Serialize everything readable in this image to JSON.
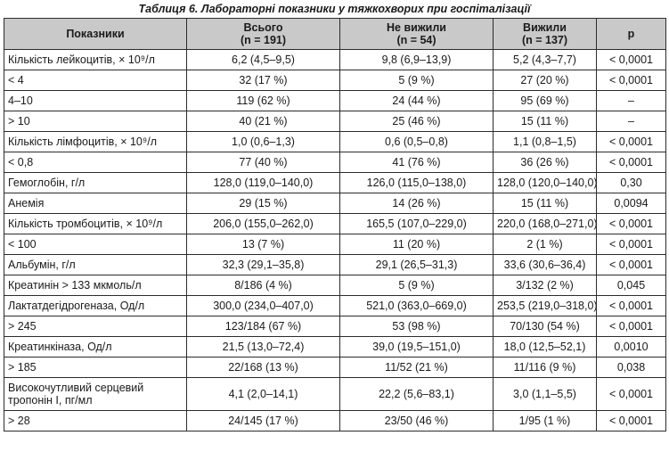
{
  "caption": "Таблиця 6. Лабораторні показники у тяжкохворих при госпіталізації",
  "headers": {
    "indicator": "Показники",
    "total_line1": "Всього",
    "total_line2": "(n = 191)",
    "died_line1": "Не вижили",
    "died_line2": "(n = 54)",
    "survived_line1": "Вижили",
    "survived_line2": "(n = 137)",
    "p": "p"
  },
  "rows": [
    {
      "label": "Кількість лейкоцитів, × 10⁹/л",
      "total": "6,2 (4,5–9,5)",
      "died": "9,8 (6,9–13,9)",
      "survived": "5,2 (4,3–7,7)",
      "p": "< 0,0001"
    },
    {
      "label": "< 4",
      "total": "32 (17 %)",
      "died": "5 (9 %)",
      "survived": "27 (20 %)",
      "p": "< 0,0001"
    },
    {
      "label": "4–10",
      "total": "119 (62 %)",
      "died": "24 (44 %)",
      "survived": "95 (69 %)",
      "p": "–"
    },
    {
      "label": "> 10",
      "total": "40 (21 %)",
      "died": "25 (46 %)",
      "survived": "15 (11 %)",
      "p": "–"
    },
    {
      "label": "Кількість лімфоцитів, × 10⁹/л",
      "total": "1,0 (0,6–1,3)",
      "died": "0,6 (0,5–0,8)",
      "survived": "1,1 (0,8–1,5)",
      "p": "< 0,0001"
    },
    {
      "label": "< 0,8",
      "total": "77 (40 %)",
      "died": "41 (76 %)",
      "survived": "36 (26 %)",
      "p": "< 0,0001"
    },
    {
      "label": "Гемоглобін, г/л",
      "total": "128,0 (119,0–140,0)",
      "died": "126,0 (115,0–138,0)",
      "survived": "128,0 (120,0–140,0)",
      "p": "0,30"
    },
    {
      "label": "Анемія",
      "total": "29 (15 %)",
      "died": "14 (26 %)",
      "survived": "15 (11 %)",
      "p": "0,0094"
    },
    {
      "label": "Кількість тромбоцитів, × 10⁹/л",
      "total": "206,0 (155,0–262,0)",
      "died": "165,5 (107,0–229,0)",
      "survived": "220,0 (168,0–271,0)",
      "p": "< 0,0001"
    },
    {
      "label": "< 100",
      "total": "13 (7 %)",
      "died": "11 (20 %)",
      "survived": "2 (1 %)",
      "p": "< 0,0001"
    },
    {
      "label": "Альбумін, г/л",
      "total": "32,3 (29,1–35,8)",
      "died": "29,1 (26,5–31,3)",
      "survived": "33,6 (30,6–36,4)",
      "p": "< 0,0001"
    },
    {
      "label": "Креатинін > 133 мкмоль/л",
      "total": "8/186 (4 %)",
      "died": "5 (9 %)",
      "survived": "3/132 (2 %)",
      "p": "0,045"
    },
    {
      "label": "Лактатдегідрогеназа, Од/л",
      "total": "300,0 (234,0–407,0)",
      "died": "521,0 (363,0–669,0)",
      "survived": "253,5 (219,0–318,0)",
      "p": "< 0,0001"
    },
    {
      "label": "> 245",
      "total": "123/184 (67 %)",
      "died": "53 (98 %)",
      "survived": "70/130 (54 %)",
      "p": "< 0,0001"
    },
    {
      "label": "Креатинкіназа, Од/л",
      "total": "21,5 (13,0–72,4)",
      "died": "39,0 (19,5–151,0)",
      "survived": "18,0 (12,5–52,1)",
      "p": "0,0010"
    },
    {
      "label": "> 185",
      "total": "22/168 (13 %)",
      "died": "11/52 (21 %)",
      "survived": "11/116 (9 %)",
      "p": "0,038"
    },
    {
      "label": "Високочутливий серцевий тропонін I, пг/мл",
      "total": "4,1 (2,0–14,1)",
      "died": "22,2 (5,6–83,1)",
      "survived": "3,0 (1,1–5,5)",
      "p": "< 0,0001"
    },
    {
      "label": "> 28",
      "total": "24/145 (17 %)",
      "died": "23/50 (46 %)",
      "survived": "1/95 (1 %)",
      "p": "< 0,0001"
    }
  ]
}
